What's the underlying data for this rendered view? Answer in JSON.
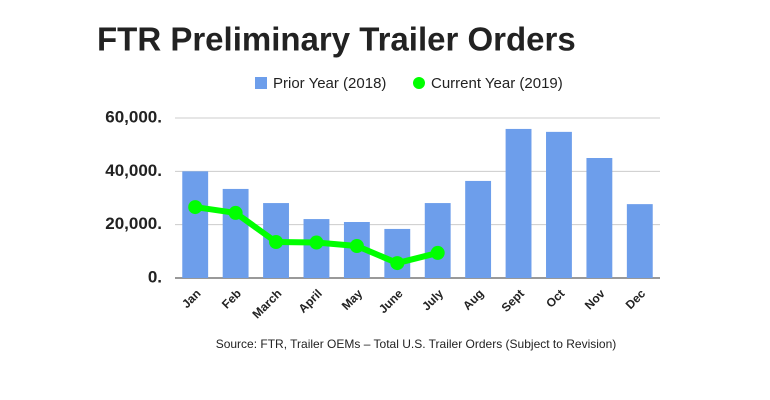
{
  "chart_data": {
    "type": "bar",
    "title": "FTR Preliminary Trailer Orders",
    "source": "Source: FTR, Trailer OEMs – Total U.S. Trailer Orders (Subject to Revision)",
    "categories": [
      "Jan",
      "Feb",
      "March",
      "April",
      "May",
      "June",
      "July",
      "Aug",
      "Sept",
      "Oct",
      "Nov",
      "Dec"
    ],
    "series": [
      {
        "name": "Prior Year (2018)",
        "type": "bar",
        "color": "#6d9eeb",
        "values": [
          40000,
          33400,
          28100,
          22100,
          21000,
          18400,
          28100,
          36400,
          55900,
          54800,
          45000,
          27700
        ]
      },
      {
        "name": "Current Year (2019)",
        "type": "line",
        "color": "#00ff00",
        "values": [
          26600,
          24400,
          13500,
          13300,
          12000,
          5600,
          9400,
          null,
          null,
          null,
          null,
          null
        ]
      }
    ],
    "ylim": [
      0,
      60000
    ],
    "yticks": [
      {
        "value": 0,
        "label": "0."
      },
      {
        "value": 20000,
        "label": "20,000."
      },
      {
        "value": 40000,
        "label": "40,000."
      },
      {
        "value": 60000,
        "label": "60,000."
      }
    ],
    "grid": true,
    "legend": "top"
  }
}
